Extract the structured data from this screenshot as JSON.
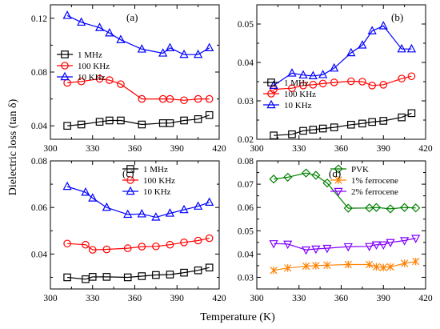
{
  "figure": {
    "xlabel": "Temperature (K)",
    "ylabel": "Dielectric loss (tan δ)"
  },
  "chart_data": [
    {
      "type": "line",
      "panel_label": "(a)",
      "xlim": [
        300,
        420
      ],
      "ylim": [
        0.03,
        0.13
      ],
      "x_ticks": [
        "300",
        "330",
        "360",
        "390",
        "420"
      ],
      "y_ticks": [
        {
          "value": 0.04,
          "label": "0.04"
        },
        {
          "value": 0.08,
          "label": "0.08"
        },
        {
          "value": 0.12,
          "label": "0.12"
        }
      ],
      "legend_position": "upper-left",
      "series": [
        {
          "name": "1 MHz",
          "color": "#000000",
          "marker": "square",
          "x": [
            312,
            322,
            335,
            342,
            350,
            365,
            380,
            385,
            395,
            405,
            413
          ],
          "y": [
            0.04,
            0.041,
            0.043,
            0.044,
            0.044,
            0.041,
            0.042,
            0.042,
            0.044,
            0.045,
            0.048
          ]
        },
        {
          "name": "100 KHz",
          "color": "#ff0000",
          "marker": "circle",
          "x": [
            312,
            322,
            335,
            342,
            350,
            365,
            380,
            385,
            395,
            405,
            413
          ],
          "y": [
            0.072,
            0.073,
            0.075,
            0.074,
            0.071,
            0.06,
            0.06,
            0.06,
            0.059,
            0.06,
            0.06
          ]
        },
        {
          "name": "10 KHz",
          "color": "#0000ff",
          "marker": "triangle",
          "x": [
            312,
            322,
            335,
            342,
            350,
            365,
            380,
            385,
            395,
            405,
            413
          ],
          "y": [
            0.122,
            0.117,
            0.113,
            0.109,
            0.104,
            0.097,
            0.094,
            0.098,
            0.093,
            0.093,
            0.098
          ]
        }
      ]
    },
    {
      "type": "line",
      "panel_label": "(b)",
      "xlim": [
        300,
        420
      ],
      "ylim": [
        0.02,
        0.055
      ],
      "x_ticks": [
        "300",
        "330",
        "360",
        "390",
        "420"
      ],
      "y_ticks": [
        {
          "value": 0.02,
          "label": "0.02"
        },
        {
          "value": 0.03,
          "label": "0.03"
        },
        {
          "value": 0.04,
          "label": "0.04"
        },
        {
          "value": 0.05,
          "label": "0.05"
        }
      ],
      "legend_position": "lower-left",
      "series": [
        {
          "name": "1 MHz",
          "color": "#000000",
          "marker": "square",
          "x": [
            312,
            325,
            333,
            340,
            347,
            355,
            367,
            375,
            382,
            390,
            403,
            410
          ],
          "y": [
            0.021,
            0.0213,
            0.0222,
            0.0225,
            0.0228,
            0.0231,
            0.0238,
            0.0241,
            0.0245,
            0.0248,
            0.0257,
            0.0268
          ]
        },
        {
          "name": "100 KHz",
          "color": "#ff0000",
          "marker": "circle",
          "x": [
            312,
            325,
            333,
            340,
            347,
            355,
            367,
            375,
            382,
            390,
            403,
            410
          ],
          "y": [
            0.033,
            0.0333,
            0.034,
            0.0342,
            0.0345,
            0.0348,
            0.0351,
            0.035,
            0.034,
            0.0342,
            0.0358,
            0.0364
          ]
        },
        {
          "name": "10 KHz",
          "color": "#0000ff",
          "marker": "triangle",
          "x": [
            312,
            325,
            333,
            340,
            347,
            355,
            367,
            375,
            382,
            390,
            403,
            410
          ],
          "y": [
            0.034,
            0.0372,
            0.0367,
            0.0365,
            0.0368,
            0.0385,
            0.0425,
            0.0445,
            0.0482,
            0.0495,
            0.0435,
            0.0435
          ]
        }
      ]
    },
    {
      "type": "line",
      "panel_label": "(c)",
      "xlim": [
        300,
        420
      ],
      "ylim": [
        0.025,
        0.08
      ],
      "x_ticks": [
        "300",
        "330",
        "360",
        "390",
        "420"
      ],
      "y_ticks": [
        {
          "value": 0.04,
          "label": "0.04"
        },
        {
          "value": 0.06,
          "label": "0.06"
        },
        {
          "value": 0.08,
          "label": "0.08"
        }
      ],
      "legend_position": "upper-right",
      "series": [
        {
          "name": "1 MHz",
          "color": "#000000",
          "marker": "square",
          "x": [
            312,
            325,
            330,
            340,
            355,
            365,
            375,
            385,
            395,
            405,
            413
          ],
          "y": [
            0.03,
            0.0292,
            0.0302,
            0.0302,
            0.03,
            0.0305,
            0.031,
            0.0312,
            0.032,
            0.033,
            0.0342
          ]
        },
        {
          "name": "100 KHz",
          "color": "#ff0000",
          "marker": "circle",
          "x": [
            312,
            325,
            330,
            340,
            355,
            365,
            375,
            385,
            395,
            405,
            413
          ],
          "y": [
            0.0445,
            0.044,
            0.0418,
            0.042,
            0.0425,
            0.0432,
            0.0433,
            0.044,
            0.045,
            0.0458,
            0.0468
          ]
        },
        {
          "name": "10 KHz",
          "color": "#0000ff",
          "marker": "triangle",
          "x": [
            312,
            325,
            330,
            340,
            355,
            365,
            375,
            385,
            395,
            405,
            413
          ],
          "y": [
            0.069,
            0.0665,
            0.064,
            0.06,
            0.057,
            0.0572,
            0.0558,
            0.0575,
            0.059,
            0.0605,
            0.0622
          ]
        }
      ]
    },
    {
      "type": "line",
      "panel_label": "(d)",
      "xlim": [
        300,
        420
      ],
      "ylim": [
        0.025,
        0.08
      ],
      "x_ticks": [
        "300",
        "330",
        "360",
        "390",
        "420"
      ],
      "y_ticks": [
        {
          "value": 0.03,
          "label": "0.03"
        },
        {
          "value": 0.04,
          "label": "0.04"
        },
        {
          "value": 0.05,
          "label": "0.05"
        },
        {
          "value": 0.06,
          "label": "0.06"
        },
        {
          "value": 0.07,
          "label": "0.07"
        },
        {
          "value": 0.08,
          "label": "0.08"
        }
      ],
      "legend_position": "upper-right",
      "series": [
        {
          "name": "PVK",
          "color": "#008000",
          "marker": "diamond",
          "x": [
            312,
            322,
            335,
            342,
            350,
            365,
            380,
            385,
            395,
            405,
            413
          ],
          "y": [
            0.0722,
            0.073,
            0.0748,
            0.0738,
            0.0705,
            0.0597,
            0.0598,
            0.06,
            0.0594,
            0.06,
            0.0598
          ]
        },
        {
          "name": "1% ferrocene",
          "color": "#ff8000",
          "marker": "cross",
          "x": [
            312,
            322,
            335,
            342,
            350,
            365,
            380,
            385,
            390,
            395,
            405,
            413
          ],
          "y": [
            0.033,
            0.034,
            0.0348,
            0.035,
            0.0352,
            0.0355,
            0.0355,
            0.0345,
            0.0342,
            0.0345,
            0.036,
            0.0368
          ]
        },
        {
          "name": "2% ferrocene",
          "color": "#8000ff",
          "marker": "triangle-down",
          "x": [
            312,
            322,
            335,
            342,
            350,
            365,
            380,
            385,
            390,
            395,
            405,
            413
          ],
          "y": [
            0.0445,
            0.0443,
            0.0418,
            0.0422,
            0.0425,
            0.0432,
            0.0433,
            0.044,
            0.044,
            0.045,
            0.0458,
            0.0468
          ]
        }
      ]
    }
  ]
}
